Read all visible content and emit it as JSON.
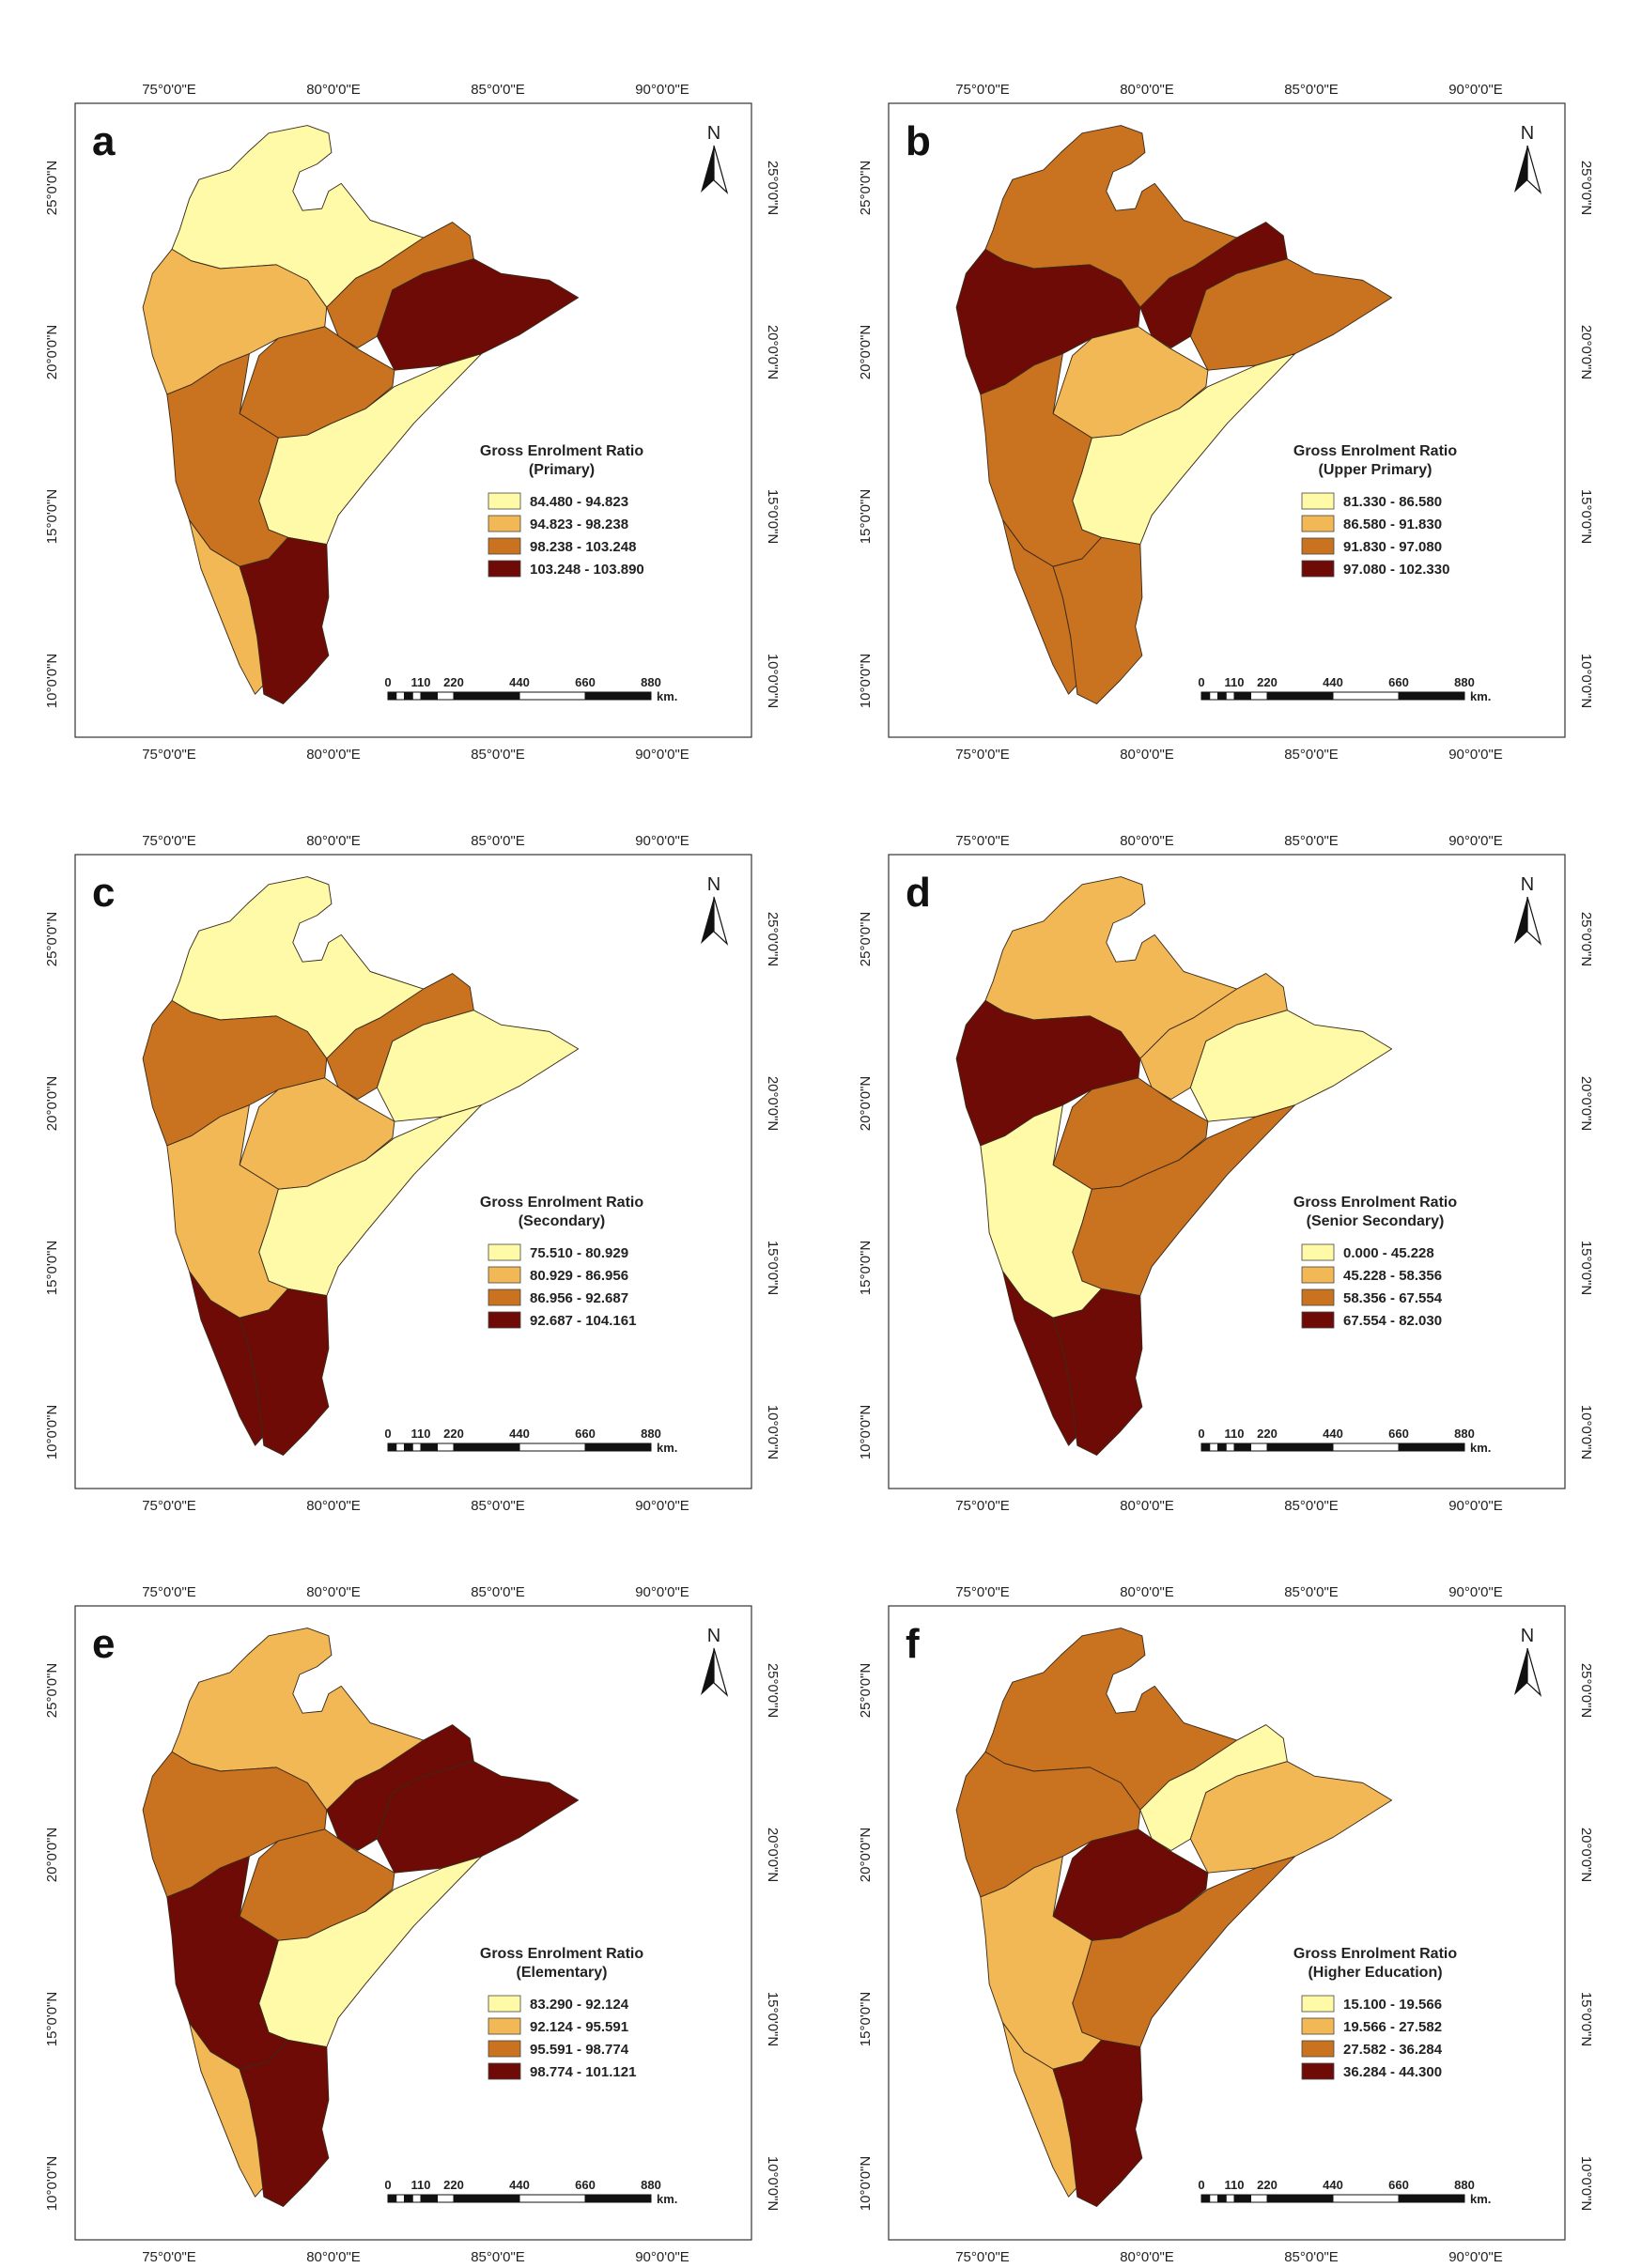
{
  "colors": [
    "#fffaa7",
    "#f2b855",
    "#c9721f",
    "#6e0b06"
  ],
  "lon_labels": [
    "75°0'0\"E",
    "80°0'0\"E",
    "85°0'0\"E",
    "90°0'0\"E"
  ],
  "lat_labels": [
    "25°0'0\"N",
    "20°0'0\"N",
    "15°0'0\"N",
    "10°0'0\"N"
  ],
  "north_label": "N",
  "scale_labels": [
    "0",
    "110",
    "220",
    "440",
    "660",
    "880"
  ],
  "scale_unit": "km.",
  "panels": [
    {
      "letter": "a",
      "legend_title_1": "Gross Enrolment Ratio",
      "legend_title_2": "(Primary)",
      "classes": [
        "84.480 - 94.823",
        "94.823 - 98.238",
        "98.238 - 103.248",
        "103.248 - 103.890"
      ],
      "regions": {
        "north": 0,
        "west": 1,
        "centre": 2,
        "east_upper": 2,
        "east": 3,
        "andhra": 0,
        "karnataka": 2,
        "kerala": 1,
        "tamil": 3
      }
    },
    {
      "letter": "b",
      "legend_title_1": "Gross Enrolment Ratio",
      "legend_title_2": "(Upper Primary)",
      "classes": [
        "81.330 - 86.580",
        "86.580 - 91.830",
        "91.830 - 97.080",
        "97.080 - 102.330"
      ],
      "regions": {
        "north": 2,
        "west": 3,
        "centre": 1,
        "east_upper": 3,
        "east": 2,
        "andhra": 0,
        "karnataka": 2,
        "kerala": 2,
        "tamil": 2
      }
    },
    {
      "letter": "c",
      "legend_title_1": "Gross Enrolment Ratio",
      "legend_title_2": "(Secondary)",
      "classes": [
        "75.510 - 80.929",
        "80.929 - 86.956",
        "86.956 - 92.687",
        "92.687 - 104.161"
      ],
      "regions": {
        "north": 0,
        "west": 2,
        "centre": 1,
        "east_upper": 2,
        "east": 0,
        "andhra": 0,
        "karnataka": 1,
        "kerala": 3,
        "tamil": 3
      }
    },
    {
      "letter": "d",
      "legend_title_1": "Gross Enrolment Ratio",
      "legend_title_2": "(Senior Secondary)",
      "classes": [
        "0.000 - 45.228",
        "45.228 - 58.356",
        "58.356 - 67.554",
        "67.554 - 82.030"
      ],
      "regions": {
        "north": 1,
        "west": 3,
        "centre": 2,
        "east_upper": 1,
        "east": 0,
        "andhra": 2,
        "karnataka": 0,
        "kerala": 3,
        "tamil": 3
      }
    },
    {
      "letter": "e",
      "legend_title_1": "Gross Enrolment Ratio",
      "legend_title_2": "(Elementary)",
      "classes": [
        "83.290 - 92.124",
        "92.124 - 95.591",
        "95.591 - 98.774",
        "98.774 - 101.121"
      ],
      "regions": {
        "north": 1,
        "west": 2,
        "centre": 2,
        "east_upper": 3,
        "east": 3,
        "andhra": 0,
        "karnataka": 3,
        "kerala": 1,
        "tamil": 3
      }
    },
    {
      "letter": "f",
      "legend_title_1": "Gross Enrolment Ratio",
      "legend_title_2": "(Higher Education)",
      "classes": [
        "15.100 - 19.566",
        "19.566 - 27.582",
        "27.582 - 36.284",
        "36.284 - 44.300"
      ],
      "regions": {
        "north": 2,
        "west": 2,
        "centre": 3,
        "east_upper": 0,
        "east": 1,
        "andhra": 2,
        "karnataka": 1,
        "kerala": 1,
        "tamil": 3
      }
    }
  ]
}
